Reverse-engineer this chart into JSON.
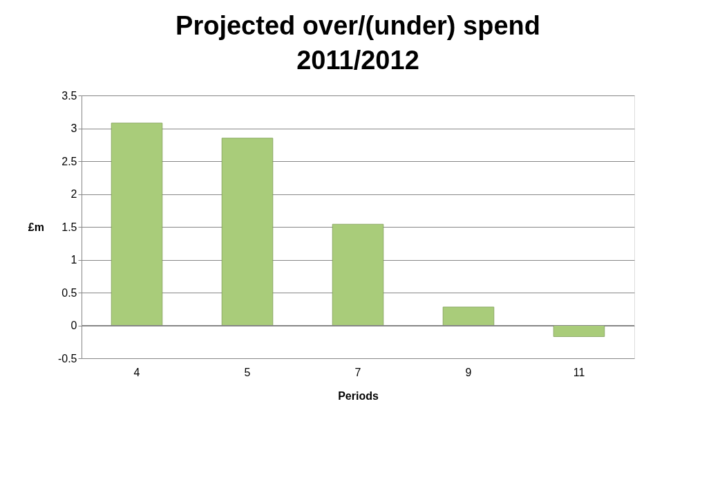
{
  "chart_data": {
    "type": "bar",
    "title": "Projected over/(under) spend 2011/2012",
    "xlabel": "Periods",
    "ylabel": "£m",
    "categories": [
      "4",
      "5",
      "7",
      "9",
      "11"
    ],
    "values": [
      3.08,
      2.85,
      1.54,
      0.28,
      -0.17
    ],
    "color": "#a9cc7a",
    "ylim": [
      -0.5,
      3.5
    ],
    "yticks": [
      -0.5,
      0,
      0.5,
      1,
      1.5,
      2,
      2.5,
      3,
      3.5
    ],
    "grid": "y"
  }
}
